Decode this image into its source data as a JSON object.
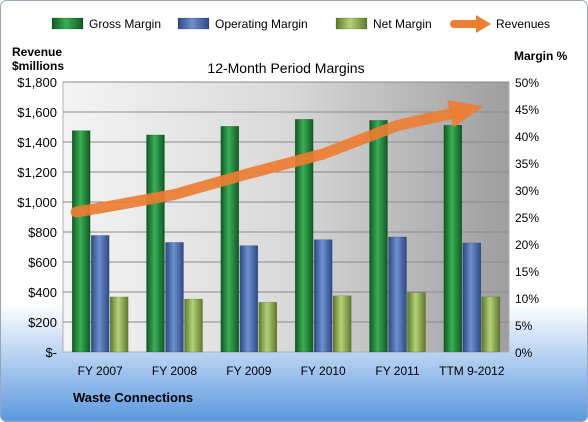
{
  "chart_data": {
    "type": "bar",
    "title": "12-Month Period Margins",
    "company": "Waste Connections",
    "ylabel_left_line1": "Revenue",
    "ylabel_left_line2": "$millions",
    "ylabel_right": "Margin %",
    "categories": [
      "FY 2007",
      "FY 2008",
      "FY 2009",
      "FY 2010",
      "FY 2011",
      "TTM 9-2012"
    ],
    "ylim_left": [
      0,
      1800
    ],
    "ylim_right": [
      0,
      0.5
    ],
    "left_ticks": [
      "$-",
      "$200",
      "$400",
      "$600",
      "$800",
      "$1,000",
      "$1,200",
      "$1,400",
      "$1,600",
      "$1,800"
    ],
    "right_ticks": [
      "0%",
      "5%",
      "10%",
      "15%",
      "20%",
      "25%",
      "30%",
      "35%",
      "40%",
      "45%",
      "50%"
    ],
    "grid": true,
    "legend_position": "top",
    "series": [
      {
        "name": "Gross Margin",
        "axis": "right",
        "color": "#1E8B3A",
        "values": [
          0.41,
          0.402,
          0.418,
          0.431,
          0.429,
          0.42
        ]
      },
      {
        "name": "Operating Margin",
        "axis": "right",
        "color": "#4A6FB4",
        "values": [
          0.216,
          0.203,
          0.197,
          0.208,
          0.213,
          0.202
        ]
      },
      {
        "name": "Net Margin",
        "axis": "right",
        "color": "#8DB04E",
        "values": [
          0.102,
          0.098,
          0.092,
          0.104,
          0.11,
          0.102
        ]
      },
      {
        "name": "Revenues",
        "axis": "left",
        "color": "#ED7D31",
        "values": [
          960,
          1050,
          1190,
          1320,
          1510,
          1620
        ]
      }
    ]
  }
}
